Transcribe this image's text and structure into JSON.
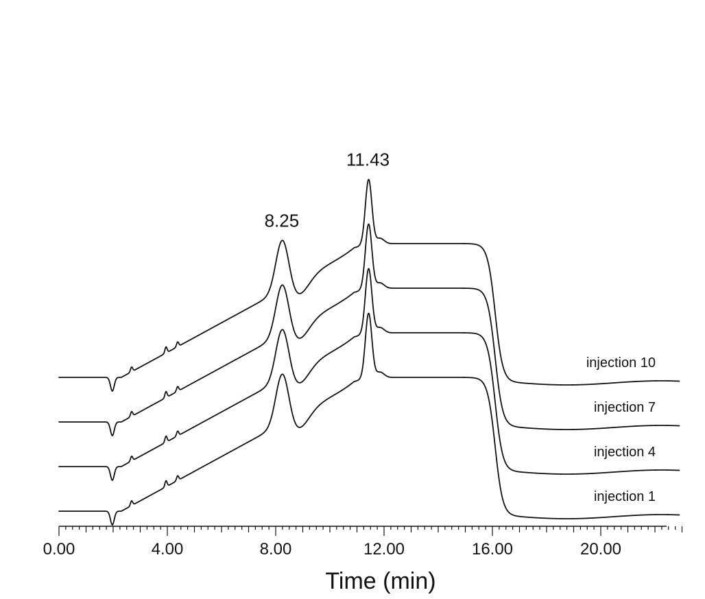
{
  "chart_data": {
    "type": "line",
    "xlabel": "Time (min)",
    "ylabel": "",
    "xlim": [
      0,
      23
    ],
    "ylim": [
      0,
      1
    ],
    "x_ticks": [
      "0.00",
      "4.00",
      "8.00",
      "12.00",
      "16.00",
      "20.00"
    ],
    "x_tick_values": [
      0,
      4,
      8,
      12,
      16,
      20
    ],
    "y_scale": "relative detector response (no printed axis)",
    "grid": false,
    "legend": "series labels at right end of each trace",
    "annotations": [
      {
        "text": "8.25",
        "x": 8.25
      },
      {
        "text": "11.43",
        "x": 11.43
      }
    ],
    "series": [
      {
        "name": "injection 10",
        "offset": 3
      },
      {
        "name": "injection 7",
        "offset": 2
      },
      {
        "name": "injection 4",
        "offset": 1
      },
      {
        "name": "injection 1",
        "offset": 0
      }
    ]
  }
}
